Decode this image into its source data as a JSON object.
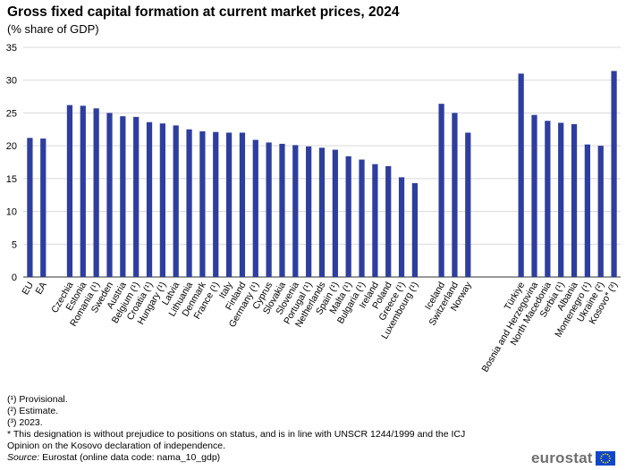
{
  "title": "Gross fixed capital formation at current market prices, 2024",
  "subtitle": "(% share of GDP)",
  "chart_data": {
    "type": "bar",
    "ylim": [
      0,
      35
    ],
    "yticks": [
      0,
      5,
      10,
      15,
      20,
      25,
      30,
      35
    ],
    "grid": true,
    "bar_color": "#2e3e9e",
    "groups": [
      {
        "categories": [
          "EU",
          "EA"
        ],
        "values": [
          21.2,
          21.1
        ]
      },
      {
        "categories": [
          "Czechia",
          "Estonia",
          "Romania (¹)",
          "Sweden",
          "Austria",
          "Belgium (¹)",
          "Croatia (¹)",
          "Hungary (¹)",
          "Latvia",
          "Lithuania",
          "Denmark",
          "France (¹)",
          "Italy",
          "Finland",
          "Germany (¹)",
          "Cyprus",
          "Slovakia",
          "Slovenia",
          "Portugal (¹)",
          "Netherlands",
          "Spain (¹)",
          "Malta (¹)",
          "Bulgaria (¹)",
          "Ireland",
          "Poland",
          "Greece (¹)",
          "Luxembourg (¹)"
        ],
        "values": [
          26.2,
          26.1,
          25.7,
          25.0,
          24.5,
          24.4,
          23.6,
          23.4,
          23.1,
          22.5,
          22.2,
          22.1,
          22.0,
          22.0,
          20.9,
          20.5,
          20.3,
          20.1,
          19.9,
          19.7,
          19.4,
          18.4,
          17.9,
          17.2,
          16.9,
          15.2,
          14.3
        ]
      },
      {
        "categories": [
          "Iceland",
          "Switzerland",
          "Norway"
        ],
        "values": [
          26.4,
          25.0,
          22.0
        ]
      },
      {
        "categories": [
          "Türkiye",
          "Bosnia and Herzegovina",
          "North Macedonia",
          "Serbia (¹)",
          "Albania",
          "Montenegro (¹)",
          "Ukraine (²)",
          "Kosovo* (³)"
        ],
        "values": [
          31.0,
          24.7,
          23.8,
          23.5,
          23.3,
          20.2,
          20.0,
          31.4
        ]
      }
    ],
    "gap_after_group": [
      0,
      0,
      2,
      0
    ]
  },
  "notes": [
    "(¹) Provisional.",
    "(²) Estimate.",
    "(³) 2023.",
    "* This designation is without prejudice to positions on status, and is in line with UNSCR 1244/1999 and the ICJ",
    "Opinion on the Kosovo declaration of independence."
  ],
  "source": {
    "label": "Source:",
    "text": " Eurostat (online data code: nama_10_gdp)"
  },
  "logo": {
    "text": "eurostat",
    "flag_color": "#0e47cb",
    "star_color": "#ffe500"
  }
}
